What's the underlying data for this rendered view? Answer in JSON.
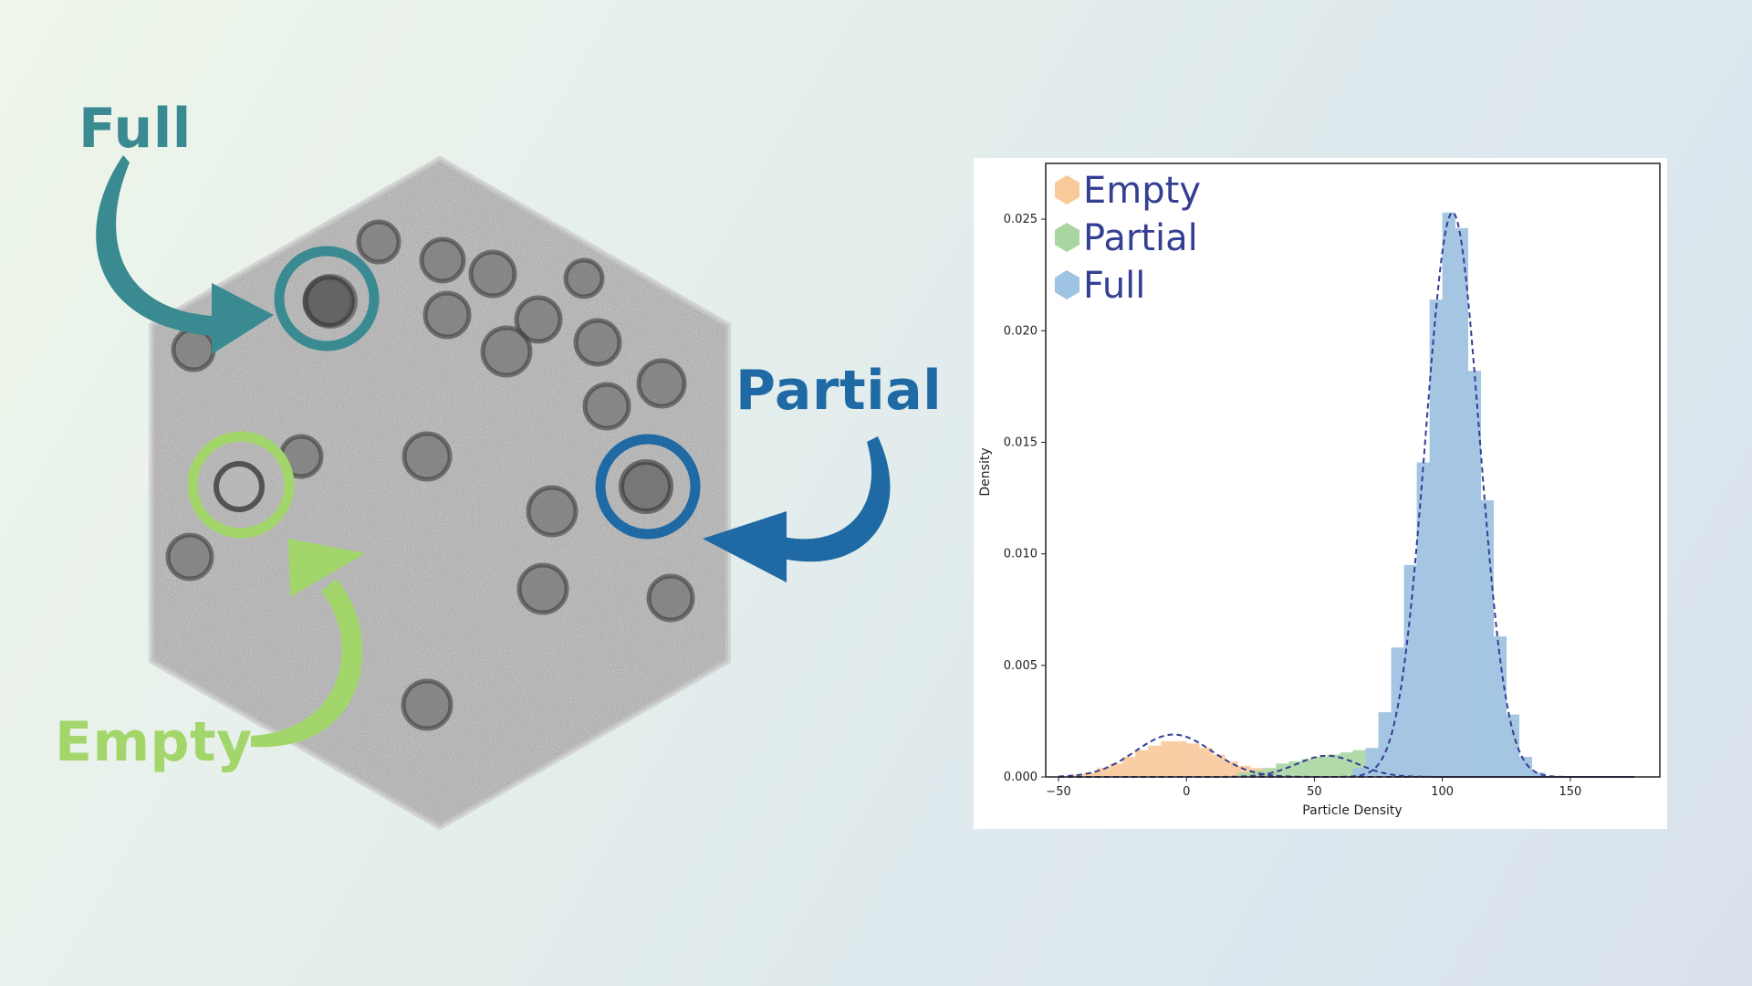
{
  "labels": {
    "full": "Full",
    "partial": "Partial",
    "empty": "Empty"
  },
  "colors": {
    "full_arrow": "#3a8a92",
    "partial_arrow": "#1f6aa5",
    "empty_arrow": "#a3d66a",
    "hist_empty": "#f9c99a",
    "hist_partial": "#a8d5a0",
    "hist_full": "#9fc3e2",
    "fit_line": "#343f93"
  },
  "chart_data": {
    "type": "bar",
    "xlabel": "Particle Density",
    "ylabel": "Density",
    "xlim": [
      -55,
      185
    ],
    "ylim": [
      0,
      0.0275
    ],
    "xticks": [
      -50,
      0,
      50,
      100,
      150
    ],
    "xtick_labels": [
      "−50",
      "0",
      "50",
      "100",
      "150"
    ],
    "yticks": [
      0,
      0.005,
      0.01,
      0.015,
      0.02,
      0.025
    ],
    "ytick_labels": [
      "0.000",
      "0.005",
      "0.010",
      "0.015",
      "0.020",
      "0.025"
    ],
    "bin_width": 5,
    "legend_position": "upper-left",
    "series": [
      {
        "name": "Empty",
        "color": "#f9c99a",
        "bins_start": [
          -50,
          -45,
          -40,
          -35,
          -30,
          -25,
          -20,
          -15,
          -10,
          -5,
          0,
          5,
          10,
          15,
          20,
          25,
          30
        ],
        "values": [
          5e-05,
          0.0001,
          0.0002,
          0.0004,
          0.0006,
          0.0009,
          0.0012,
          0.0014,
          0.0016,
          0.0016,
          0.0015,
          0.0013,
          0.001,
          0.0007,
          0.0005,
          0.0004,
          0.0002
        ]
      },
      {
        "name": "Partial",
        "color": "#a8d5a0",
        "bins_start": [
          20,
          25,
          30,
          35,
          40,
          45,
          50,
          55,
          60,
          65
        ],
        "values": [
          0.0002,
          0.0003,
          0.0004,
          0.0006,
          0.0007,
          0.0008,
          0.0009,
          0.001,
          0.0011,
          0.0012
        ]
      },
      {
        "name": "Full",
        "color": "#9fc3e2",
        "bins_start": [
          65,
          70,
          75,
          80,
          85,
          90,
          95,
          100,
          105,
          110,
          115,
          120,
          125,
          130,
          135
        ],
        "values": [
          0.0004,
          0.0013,
          0.0029,
          0.0058,
          0.0095,
          0.0141,
          0.0214,
          0.0253,
          0.0246,
          0.0182,
          0.0124,
          0.0063,
          0.0028,
          0.0009,
          0.0002
        ]
      }
    ],
    "fits": [
      {
        "name": "Empty fit",
        "type": "gaussian",
        "mean": -5,
        "std": 15,
        "peak": 0.0019
      },
      {
        "name": "Partial fit",
        "type": "gaussian",
        "mean": 55,
        "std": 12,
        "peak": 0.00095
      },
      {
        "name": "Full fit",
        "type": "gaussian",
        "mean": 104,
        "std": 10.5,
        "peak": 0.0253
      }
    ]
  }
}
